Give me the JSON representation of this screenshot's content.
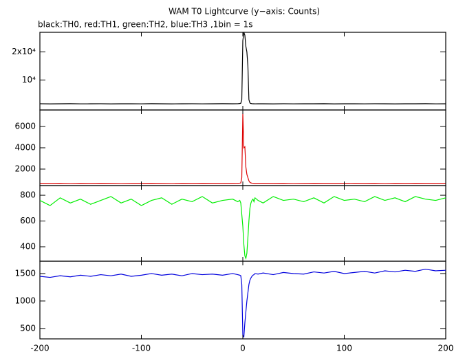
{
  "chart_data": [
    {
      "type": "line",
      "title": "WAM T0 Lightcurve (y−axis: Counts)",
      "subtitle": "black:TH0, red:TH1, green:TH2, blue:TH3 ,1bin = 1s",
      "color": "#000000",
      "x": [
        -200,
        -190,
        -180,
        -170,
        -160,
        -150,
        -140,
        -130,
        -120,
        -110,
        -100,
        -90,
        -80,
        -70,
        -60,
        -50,
        -40,
        -30,
        -20,
        -10,
        -5,
        -3,
        -2,
        -1,
        0,
        1,
        2,
        3,
        4,
        5,
        6,
        7,
        8,
        9,
        10,
        11,
        12,
        15,
        20,
        30,
        40,
        50,
        60,
        70,
        80,
        90,
        100,
        110,
        120,
        130,
        140,
        150,
        160,
        170,
        180,
        190,
        200
      ],
      "values": [
        1520,
        1480,
        1510,
        1530,
        1490,
        1500,
        1520,
        1470,
        1510,
        1500,
        1490,
        1530,
        1500,
        1480,
        1510,
        1520,
        1490,
        1500,
        1530,
        1510,
        1520,
        1600,
        1700,
        3000,
        24000,
        27000,
        26000,
        22000,
        20000,
        15000,
        3000,
        1800,
        1600,
        1550,
        1510,
        1500,
        1490,
        1510,
        1500,
        1480,
        1520,
        1490,
        1510,
        1500,
        1530,
        1480,
        1500,
        1510,
        1490,
        1520,
        1500,
        1480,
        1510,
        1500,
        1530,
        1490,
        1510
      ],
      "xlim": [
        -200,
        200
      ],
      "ylim": [
        -700,
        27000
      ],
      "yticks": [
        {
          "value": 20000,
          "label": "2x10⁴"
        },
        {
          "value": 10000,
          "label": "10⁴"
        }
      ]
    },
    {
      "type": "line",
      "color": "#dd0000",
      "x": [
        -200,
        -190,
        -180,
        -170,
        -160,
        -150,
        -140,
        -130,
        -120,
        -110,
        -100,
        -90,
        -80,
        -70,
        -60,
        -50,
        -40,
        -30,
        -20,
        -10,
        -5,
        -3,
        -2,
        -1,
        0,
        1,
        2,
        3,
        4,
        5,
        6,
        7,
        8,
        9,
        10,
        11,
        12,
        15,
        20,
        30,
        40,
        50,
        60,
        70,
        80,
        90,
        100,
        110,
        120,
        130,
        140,
        150,
        160,
        170,
        180,
        190,
        200
      ],
      "values": [
        660,
        650,
        670,
        640,
        660,
        650,
        670,
        660,
        640,
        650,
        660,
        670,
        650,
        640,
        660,
        650,
        670,
        660,
        650,
        660,
        670,
        680,
        700,
        1200,
        7200,
        4000,
        4100,
        2200,
        1500,
        1200,
        900,
        750,
        700,
        680,
        670,
        660,
        650,
        660,
        670,
        650,
        660,
        640,
        650,
        670,
        660,
        650,
        660,
        670,
        650,
        660,
        640,
        660,
        650,
        670,
        660,
        650,
        660
      ],
      "xlim": [
        -200,
        200
      ],
      "ylim": [
        450,
        7550
      ],
      "yticks": [
        6000,
        4000,
        2000
      ]
    },
    {
      "type": "line",
      "color": "#00ee00",
      "x": [
        -200,
        -190,
        -180,
        -170,
        -160,
        -150,
        -140,
        -130,
        -120,
        -110,
        -100,
        -90,
        -80,
        -70,
        -60,
        -50,
        -40,
        -30,
        -20,
        -10,
        -5,
        -3,
        -2,
        -1,
        0,
        1,
        2,
        3,
        4,
        5,
        6,
        7,
        8,
        9,
        10,
        11,
        12,
        15,
        20,
        30,
        40,
        50,
        60,
        70,
        80,
        90,
        100,
        110,
        120,
        130,
        140,
        150,
        160,
        170,
        180,
        190,
        200
      ],
      "values": [
        760,
        720,
        780,
        740,
        770,
        730,
        760,
        790,
        740,
        770,
        720,
        760,
        780,
        730,
        770,
        750,
        790,
        740,
        760,
        770,
        750,
        760,
        740,
        650,
        560,
        420,
        330,
        310,
        350,
        470,
        600,
        700,
        740,
        760,
        770,
        750,
        780,
        760,
        740,
        790,
        760,
        770,
        750,
        780,
        740,
        790,
        760,
        770,
        750,
        790,
        760,
        780,
        750,
        790,
        770,
        760,
        780
      ],
      "xlim": [
        -200,
        200
      ],
      "ylim": [
        288,
        875
      ],
      "yticks": [
        800,
        600,
        400
      ]
    },
    {
      "type": "line",
      "color": "#0000dd",
      "x": [
        -200,
        -190,
        -180,
        -170,
        -160,
        -150,
        -140,
        -130,
        -120,
        -110,
        -100,
        -90,
        -80,
        -70,
        -60,
        -50,
        -40,
        -30,
        -20,
        -10,
        -5,
        -3,
        -2,
        -1,
        0,
        1,
        2,
        3,
        4,
        5,
        6,
        7,
        8,
        9,
        10,
        11,
        12,
        15,
        20,
        30,
        40,
        50,
        60,
        70,
        80,
        90,
        100,
        110,
        120,
        130,
        140,
        150,
        160,
        170,
        180,
        190,
        200
      ],
      "values": [
        1450,
        1430,
        1460,
        1440,
        1470,
        1450,
        1480,
        1460,
        1490,
        1450,
        1470,
        1500,
        1470,
        1490,
        1460,
        1500,
        1480,
        1490,
        1470,
        1500,
        1480,
        1470,
        1460,
        1300,
        380,
        340,
        600,
        800,
        1000,
        1150,
        1300,
        1380,
        1420,
        1450,
        1470,
        1480,
        1500,
        1490,
        1510,
        1480,
        1520,
        1500,
        1490,
        1530,
        1510,
        1540,
        1500,
        1520,
        1540,
        1510,
        1550,
        1530,
        1560,
        1540,
        1580,
        1550,
        1560
      ],
      "xlim": [
        -200,
        200
      ],
      "ylim": [
        310,
        1725
      ],
      "yticks": [
        1500,
        1000,
        500
      ],
      "xticks": [
        -200,
        -100,
        0,
        100,
        200
      ]
    }
  ]
}
